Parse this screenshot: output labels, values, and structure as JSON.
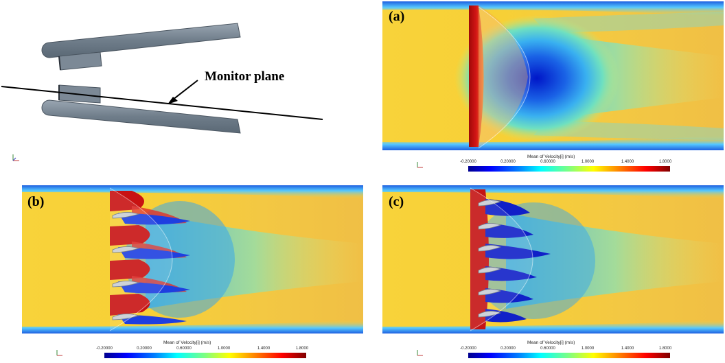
{
  "figure": {
    "monitor_label": "Monitor plane",
    "panels": [
      {
        "id": "a",
        "label": "(a)"
      },
      {
        "id": "b",
        "label": "(b)"
      },
      {
        "id": "c",
        "label": "(c)"
      }
    ],
    "colorbar": {
      "title": "Mean of Velocity[i] (m/s)",
      "ticks": [
        "-0.20000",
        "0.20000",
        "0.60000",
        "1.0000",
        "1.4000",
        "1.8000"
      ]
    },
    "colors": {
      "background_flow": "#f6d23a",
      "wall_blue": "#3aa0e8",
      "wake_blue": "#2c7fe0",
      "core_blue": "#0a1fd0",
      "high_red": "#c81010",
      "orange": "#f39a2a",
      "geometry_gray": "#7a8795"
    }
  }
}
